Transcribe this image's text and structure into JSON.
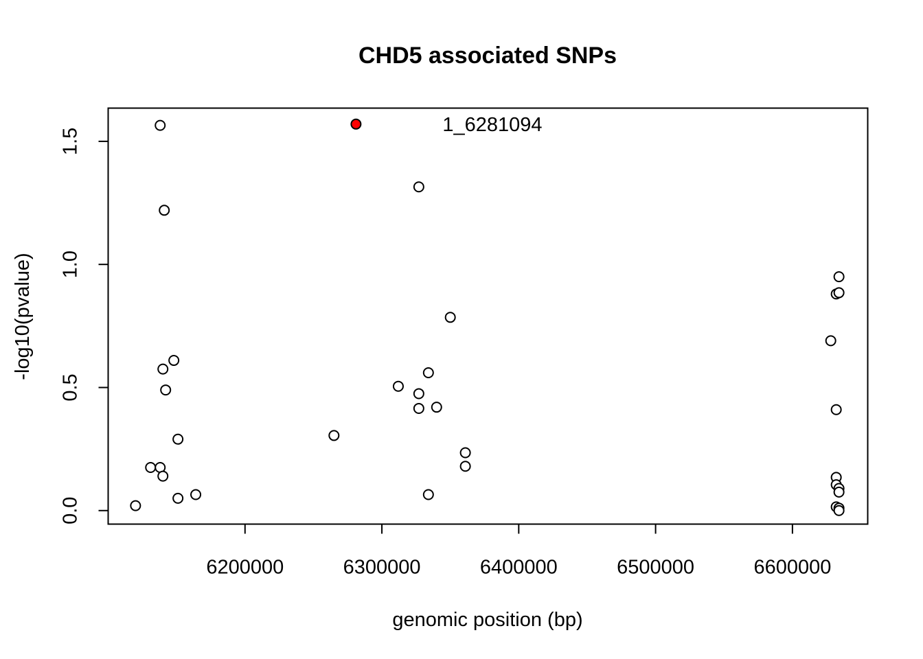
{
  "chart_data": {
    "type": "scatter",
    "title": "CHD5 associated SNPs",
    "xlabel": "genomic position (bp)",
    "ylabel": "-log10(pvalue)",
    "xlim": [
      6100000,
      6655000
    ],
    "ylim": [
      -0.055,
      1.635
    ],
    "xticks": [
      6200000,
      6300000,
      6400000,
      6500000,
      6600000
    ],
    "xtick_labels": [
      "6200000",
      "6300000",
      "6400000",
      "6500000",
      "6600000"
    ],
    "yticks": [
      0.0,
      0.5,
      1.0,
      1.5
    ],
    "ytick_labels": [
      "0.0",
      "0.5",
      "1.0",
      "1.5"
    ],
    "grid": false,
    "colors": {
      "highlight": "#ff0000",
      "point_fill": "#ffffff",
      "stroke": "#000000"
    },
    "points": [
      {
        "x": 6120000,
        "y": 0.02
      },
      {
        "x": 6131000,
        "y": 0.175
      },
      {
        "x": 6138000,
        "y": 0.175
      },
      {
        "x": 6138000,
        "y": 1.565
      },
      {
        "x": 6140000,
        "y": 0.14
      },
      {
        "x": 6140000,
        "y": 0.575
      },
      {
        "x": 6141000,
        "y": 1.22
      },
      {
        "x": 6142000,
        "y": 0.49
      },
      {
        "x": 6148000,
        "y": 0.61
      },
      {
        "x": 6151000,
        "y": 0.29
      },
      {
        "x": 6151000,
        "y": 0.05
      },
      {
        "x": 6164000,
        "y": 0.065
      },
      {
        "x": 6265000,
        "y": 0.305
      },
      {
        "x": 6312000,
        "y": 0.505
      },
      {
        "x": 6327000,
        "y": 1.315
      },
      {
        "x": 6327000,
        "y": 0.475
      },
      {
        "x": 6327000,
        "y": 0.415
      },
      {
        "x": 6334000,
        "y": 0.56
      },
      {
        "x": 6334000,
        "y": 0.065
      },
      {
        "x": 6340000,
        "y": 0.42
      },
      {
        "x": 6350000,
        "y": 0.785
      },
      {
        "x": 6361000,
        "y": 0.235
      },
      {
        "x": 6361000,
        "y": 0.18
      },
      {
        "x": 6628000,
        "y": 0.69
      },
      {
        "x": 6632000,
        "y": 0.88
      },
      {
        "x": 6632000,
        "y": 0.41
      },
      {
        "x": 6632000,
        "y": 0.135
      },
      {
        "x": 6632000,
        "y": 0.105
      },
      {
        "x": 6632000,
        "y": 0.015
      },
      {
        "x": 6634000,
        "y": 0.95
      },
      {
        "x": 6634000,
        "y": 0.885
      },
      {
        "x": 6634000,
        "y": 0.09
      },
      {
        "x": 6634000,
        "y": 0.075
      },
      {
        "x": 6634000,
        "y": 0.01
      },
      {
        "x": 6634000,
        "y": 0.0
      }
    ],
    "highlight": {
      "x": 6281094,
      "y": 1.57,
      "label": "1_6281094"
    }
  }
}
